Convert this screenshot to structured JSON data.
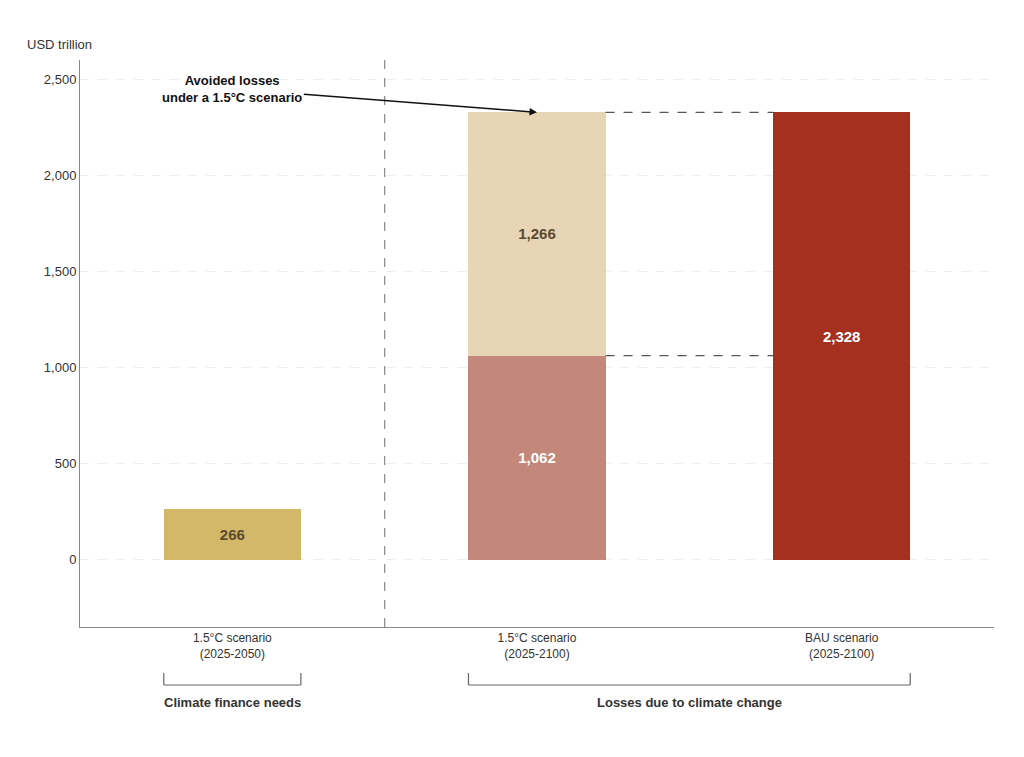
{
  "chart_data": {
    "type": "bar",
    "stacked": true,
    "data_labels": true,
    "grid": true,
    "y_label": "USD trillion",
    "categories": [
      "1.5°C scenario\n(2025-2050)",
      "1.5°C scenario\n(2025-2100)",
      "BAU scenario\n(2025-2100)"
    ],
    "series": [
      {
        "color": "#D4B86A",
        "values": [
          266,
          null,
          null
        ],
        "value_labels": [
          "266",
          null,
          null
        ]
      },
      {
        "color": "#C4887A",
        "values": [
          null,
          1062,
          null
        ],
        "value_labels": [
          null,
          "1,062",
          null
        ]
      },
      {
        "color": "#E8D5B5",
        "values": [
          null,
          1266,
          null
        ],
        "value_labels": [
          null,
          "1,266",
          null
        ]
      },
      {
        "color": "#A63020",
        "values": [
          null,
          null,
          2328
        ],
        "value_labels": [
          null,
          null,
          "2,328"
        ]
      }
    ],
    "ylim": [
      -350,
      2600
    ],
    "yticks": [
      0,
      500,
      {
        "value": 1000,
        "label": "1,000"
      },
      {
        "value": 1500,
        "label": "1,500"
      },
      {
        "value": 2000,
        "label": "2,000"
      },
      {
        "value": 2500,
        "label": "2,500"
      }
    ],
    "groups": [
      {
        "label": "Climate finance needs",
        "categories": [
          "1.5°C scenario\n(2025-2050)"
        ]
      },
      {
        "label": "Losses due to climate change",
        "categories": [
          "1.5°C scenario\n(2025-2100)",
          "BAU scenario\n(2025-2100)"
        ]
      }
    ],
    "annotations": [
      {
        "text": "Avoided losses\nunder a 1.5°C scenario",
        "category": "1.5°C scenario\n(2025-2100)",
        "y": 2328
      }
    ]
  }
}
